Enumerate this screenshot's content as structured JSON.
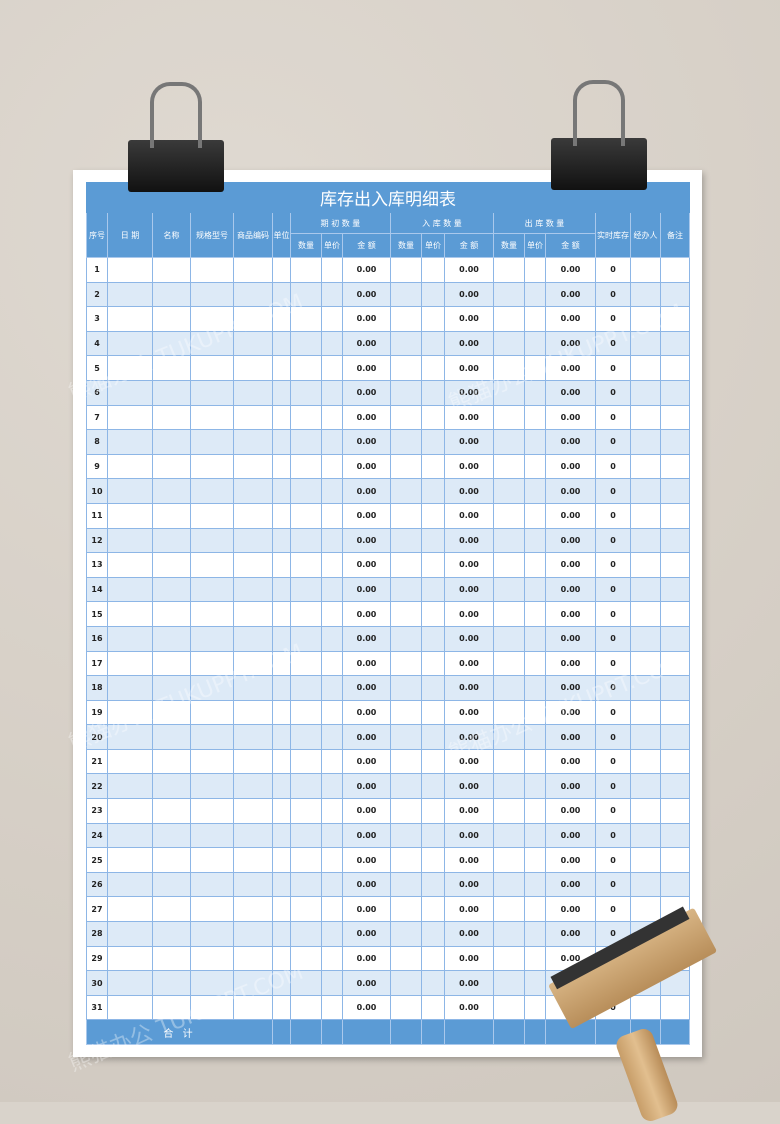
{
  "title": "库存出入库明细表",
  "headers": {
    "serial": "序号",
    "date": "日 期",
    "name": "名称",
    "spec": "规格型号",
    "code": "商品编码",
    "unit": "单位",
    "opening": "期 初 数 量",
    "inbound": "入 库 数 量",
    "outbound": "出 库 数 量",
    "stock": "实时库存",
    "handler": "经办人",
    "remark": "备注",
    "qty": "数量",
    "price": "单价",
    "amount": "金 额"
  },
  "rows": [
    {
      "no": "1",
      "o": "0.00",
      "i": "0.00",
      "u": "0.00",
      "s": "0"
    },
    {
      "no": "2",
      "o": "0.00",
      "i": "0.00",
      "u": "0.00",
      "s": "0"
    },
    {
      "no": "3",
      "o": "0.00",
      "i": "0.00",
      "u": "0.00",
      "s": "0"
    },
    {
      "no": "4",
      "o": "0.00",
      "i": "0.00",
      "u": "0.00",
      "s": "0"
    },
    {
      "no": "5",
      "o": "0.00",
      "i": "0.00",
      "u": "0.00",
      "s": "0"
    },
    {
      "no": "6",
      "o": "0.00",
      "i": "0.00",
      "u": "0.00",
      "s": "0"
    },
    {
      "no": "7",
      "o": "0.00",
      "i": "0.00",
      "u": "0.00",
      "s": "0"
    },
    {
      "no": "8",
      "o": "0.00",
      "i": "0.00",
      "u": "0.00",
      "s": "0"
    },
    {
      "no": "9",
      "o": "0.00",
      "i": "0.00",
      "u": "0.00",
      "s": "0"
    },
    {
      "no": "10",
      "o": "0.00",
      "i": "0.00",
      "u": "0.00",
      "s": "0"
    },
    {
      "no": "11",
      "o": "0.00",
      "i": "0.00",
      "u": "0.00",
      "s": "0"
    },
    {
      "no": "12",
      "o": "0.00",
      "i": "0.00",
      "u": "0.00",
      "s": "0"
    },
    {
      "no": "13",
      "o": "0.00",
      "i": "0.00",
      "u": "0.00",
      "s": "0"
    },
    {
      "no": "14",
      "o": "0.00",
      "i": "0.00",
      "u": "0.00",
      "s": "0"
    },
    {
      "no": "15",
      "o": "0.00",
      "i": "0.00",
      "u": "0.00",
      "s": "0"
    },
    {
      "no": "16",
      "o": "0.00",
      "i": "0.00",
      "u": "0.00",
      "s": "0"
    },
    {
      "no": "17",
      "o": "0.00",
      "i": "0.00",
      "u": "0.00",
      "s": "0"
    },
    {
      "no": "18",
      "o": "0.00",
      "i": "0.00",
      "u": "0.00",
      "s": "0"
    },
    {
      "no": "19",
      "o": "0.00",
      "i": "0.00",
      "u": "0.00",
      "s": "0"
    },
    {
      "no": "20",
      "o": "0.00",
      "i": "0.00",
      "u": "0.00",
      "s": "0"
    },
    {
      "no": "21",
      "o": "0.00",
      "i": "0.00",
      "u": "0.00",
      "s": "0"
    },
    {
      "no": "22",
      "o": "0.00",
      "i": "0.00",
      "u": "0.00",
      "s": "0"
    },
    {
      "no": "23",
      "o": "0.00",
      "i": "0.00",
      "u": "0.00",
      "s": "0"
    },
    {
      "no": "24",
      "o": "0.00",
      "i": "0.00",
      "u": "0.00",
      "s": "0"
    },
    {
      "no": "25",
      "o": "0.00",
      "i": "0.00",
      "u": "0.00",
      "s": "0"
    },
    {
      "no": "26",
      "o": "0.00",
      "i": "0.00",
      "u": "0.00",
      "s": "0"
    },
    {
      "no": "27",
      "o": "0.00",
      "i": "0.00",
      "u": "0.00",
      "s": "0"
    },
    {
      "no": "28",
      "o": "0.00",
      "i": "0.00",
      "u": "0.00",
      "s": "0"
    },
    {
      "no": "29",
      "o": "0.00",
      "i": "0.00",
      "u": "0.00",
      "s": "0"
    },
    {
      "no": "30",
      "o": "0.00",
      "i": "0.00",
      "u": "0.00",
      "s": "0"
    },
    {
      "no": "31",
      "o": "0.00",
      "i": "0.00",
      "u": "0.00",
      "s": "0"
    }
  ],
  "total_label": "合 计",
  "watermark": "熊猫办公 TUKUPPT.COM",
  "colors": {
    "header": "#5b9bd5",
    "stripe": "#ddeaf7",
    "grid": "#8db6e6"
  }
}
